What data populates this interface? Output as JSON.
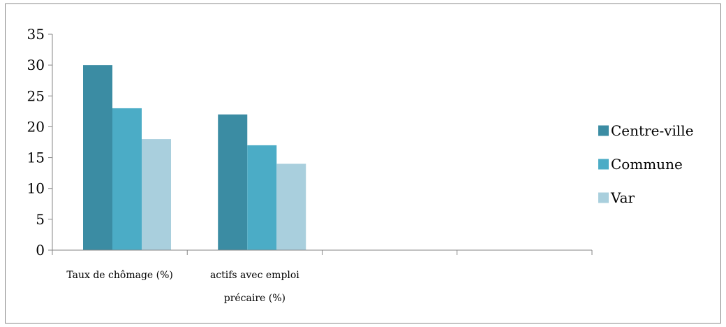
{
  "chart_data": {
    "type": "bar",
    "title": "",
    "xlabel": "",
    "ylabel": "",
    "ylim": [
      0,
      35
    ],
    "yticks": [
      0,
      5,
      10,
      15,
      20,
      25,
      30,
      35
    ],
    "grid": false,
    "legend_position": "right",
    "categories": [
      [
        "Taux de chômage (%)"
      ],
      [
        "actifs avec emploi",
        "précaire (%)"
      ],
      [],
      []
    ],
    "series": [
      {
        "name": "Centre-ville",
        "color": "#3b8ca3",
        "values": [
          30,
          22,
          null,
          null
        ]
      },
      {
        "name": "Commune",
        "color": "#4bacc6",
        "values": [
          23,
          17,
          null,
          null
        ]
      },
      {
        "name": "Var",
        "color": "#a9cfdd",
        "values": [
          18,
          14,
          null,
          null
        ]
      }
    ]
  }
}
